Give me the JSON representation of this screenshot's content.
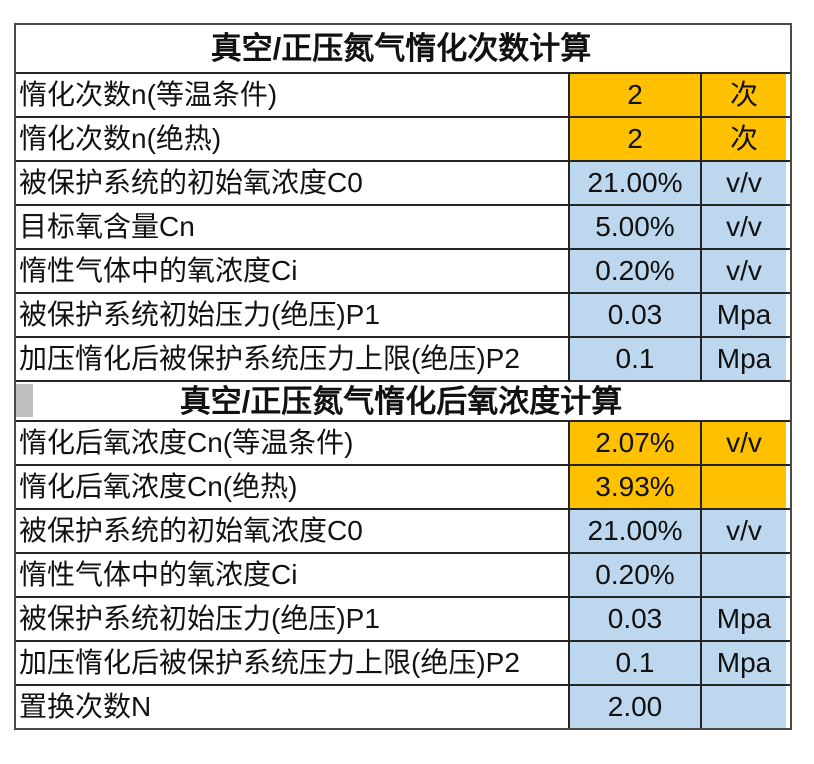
{
  "colors": {
    "orange": "#FFC000",
    "light_blue": "#BDD7EE",
    "inner_border": "#242424",
    "outer_border": "#4a4a4a",
    "artifact_gray": "#BFBFBF",
    "text": "#111111"
  },
  "table": {
    "sections": [
      {
        "title": "真空/正压氮气惰化次数计算",
        "rows": [
          {
            "label": "惰化次数n(等温条件)",
            "value": "2",
            "unit": "次",
            "fill": "orange"
          },
          {
            "label": "惰化次数n(绝热)",
            "value": "2",
            "unit": "次",
            "fill": "orange"
          },
          {
            "label": "被保护系统的初始氧浓度C0",
            "value": "21.00%",
            "unit": "v/v",
            "fill": "blue"
          },
          {
            "label": "目标氧含量Cn",
            "value": "5.00%",
            "unit": "v/v",
            "fill": "blue"
          },
          {
            "label": "惰性气体中的氧浓度Ci",
            "value": "0.20%",
            "unit": "v/v",
            "fill": "blue"
          },
          {
            "label": "被保护系统初始压力(绝压)P1",
            "value": "0.03",
            "unit": "Mpa",
            "fill": "blue"
          },
          {
            "label": "加压惰化后被保护系统压力上限(绝压)P2",
            "value": "0.1",
            "unit": "Mpa",
            "fill": "blue"
          }
        ]
      },
      {
        "title": "真空/正压氮气惰化后氧浓度计算",
        "rows": [
          {
            "label": "惰化后氧浓度Cn(等温条件)",
            "value": "2.07%",
            "unit": "v/v",
            "fill": "orange"
          },
          {
            "label": "惰化后氧浓度Cn(绝热)",
            "value": "3.93%",
            "unit": "",
            "fill": "orange"
          },
          {
            "label": "被保护系统的初始氧浓度C0",
            "value": "21.00%",
            "unit": "v/v",
            "fill": "blue"
          },
          {
            "label": "惰性气体中的氧浓度Ci",
            "value": "0.20%",
            "unit": "",
            "fill": "blue"
          },
          {
            "label": "被保护系统初始压力(绝压)P1",
            "value": "0.03",
            "unit": "Mpa",
            "fill": "blue"
          },
          {
            "label": "加压惰化后被保护系统压力上限(绝压)P2",
            "value": "0.1",
            "unit": "Mpa",
            "fill": "blue"
          },
          {
            "label": "置换次数N",
            "value": "2.00",
            "unit": "",
            "fill": "blue"
          }
        ]
      }
    ]
  }
}
